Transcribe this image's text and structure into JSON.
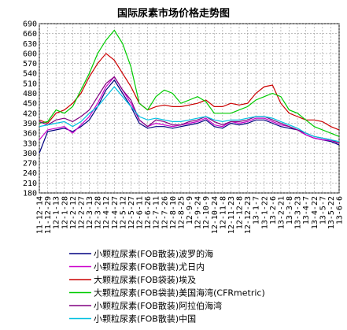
{
  "chart_data": {
    "type": "line",
    "title": "国际尿素市场价格走势图",
    "xlabel": "",
    "ylabel": "",
    "ylim": [
      180,
      690
    ],
    "yticks": [
      180,
      210,
      240,
      270,
      300,
      330,
      360,
      390,
      420,
      450,
      480,
      510,
      540,
      570,
      600,
      630,
      660,
      690
    ],
    "grid": true,
    "legend_position": "bottom",
    "categories": [
      "11-12-14",
      "11-12-29",
      "12-1-13",
      "12-1-28",
      "12-2-12",
      "12-2-27",
      "12-3-13",
      "12-3-28",
      "12-4-12",
      "12-4-27",
      "12-5-12",
      "12-5-27",
      "12-6-11",
      "12-6-26",
      "12-7-11",
      "12-7-26",
      "12-8-10",
      "12-8-25",
      "12-9-9",
      "12-9-24",
      "12-10-9",
      "12-10-24",
      "12-11-8",
      "12-11-23",
      "12-12-8",
      "12-12-23",
      "13-1-7",
      "13-1-22",
      "13-2-6",
      "13-2-21",
      "13-3-8",
      "13-3-23",
      "13-4-7",
      "13-4-22",
      "13-5-7",
      "13-5-22",
      "13-6-6"
    ],
    "series": [
      {
        "name": "小颗粒尿素(FOB散装)波罗的海",
        "color": "#000080",
        "values": [
          300,
          365,
          370,
          375,
          365,
          380,
          400,
          440,
          490,
          520,
          480,
          440,
          390,
          375,
          380,
          380,
          375,
          380,
          385,
          390,
          400,
          380,
          375,
          390,
          385,
          390,
          400,
          400,
          390,
          380,
          375,
          370,
          355,
          345,
          340,
          335,
          325
        ]
      },
      {
        "name": "小颗粒尿素(FOB散装)尤日内",
        "color": "#cc00cc",
        "values": [
          340,
          370,
          375,
          380,
          360,
          385,
          410,
          450,
          500,
          530,
          490,
          450,
          400,
          380,
          390,
          385,
          380,
          385,
          390,
          395,
          405,
          385,
          380,
          395,
          390,
          395,
          405,
          405,
          395,
          385,
          380,
          370,
          355,
          345,
          340,
          338,
          330
        ]
      },
      {
        "name": "大颗粒尿素(FOB袋装)埃及",
        "color": "#cc0000",
        "values": [
          400,
          390,
          420,
          430,
          450,
          480,
          530,
          570,
          600,
          580,
          540,
          500,
          450,
          430,
          440,
          445,
          440,
          440,
          445,
          450,
          460,
          440,
          440,
          450,
          445,
          450,
          480,
          500,
          505,
          450,
          420,
          410,
          400,
          400,
          395,
          380,
          370
        ]
      },
      {
        "name": "大颗粒尿素(FOB袋装)美国海湾(CFRmetric)",
        "color": "#00cc00",
        "values": [
          390,
          395,
          430,
          420,
          440,
          490,
          540,
          600,
          640,
          670,
          630,
          560,
          450,
          430,
          470,
          490,
          480,
          450,
          460,
          470,
          455,
          420,
          420,
          420,
          430,
          440,
          460,
          470,
          480,
          470,
          430,
          420,
          400,
          380,
          370,
          360,
          350
        ]
      },
      {
        "name": "小颗粒尿素(FOB散装)阿拉伯海湾",
        "color": "#800080",
        "values": [
          395,
          385,
          400,
          405,
          395,
          410,
          430,
          470,
          510,
          530,
          490,
          460,
          400,
          380,
          400,
          395,
          385,
          385,
          395,
          400,
          410,
          395,
          385,
          395,
          395,
          400,
          410,
          410,
          400,
          390,
          380,
          370,
          360,
          350,
          345,
          340,
          330
        ]
      },
      {
        "name": "小颗粒尿素(FOB散装)中国",
        "color": "#00c0e0",
        "values": [
          380,
          385,
          390,
          395,
          380,
          395,
          420,
          440,
          470,
          500,
          470,
          440,
          410,
          400,
          405,
          400,
          395,
          395,
          400,
          405,
          410,
          400,
          395,
          400,
          400,
          405,
          410,
          410,
          405,
          395,
          385,
          375,
          360,
          350,
          345,
          340,
          335
        ]
      }
    ]
  }
}
